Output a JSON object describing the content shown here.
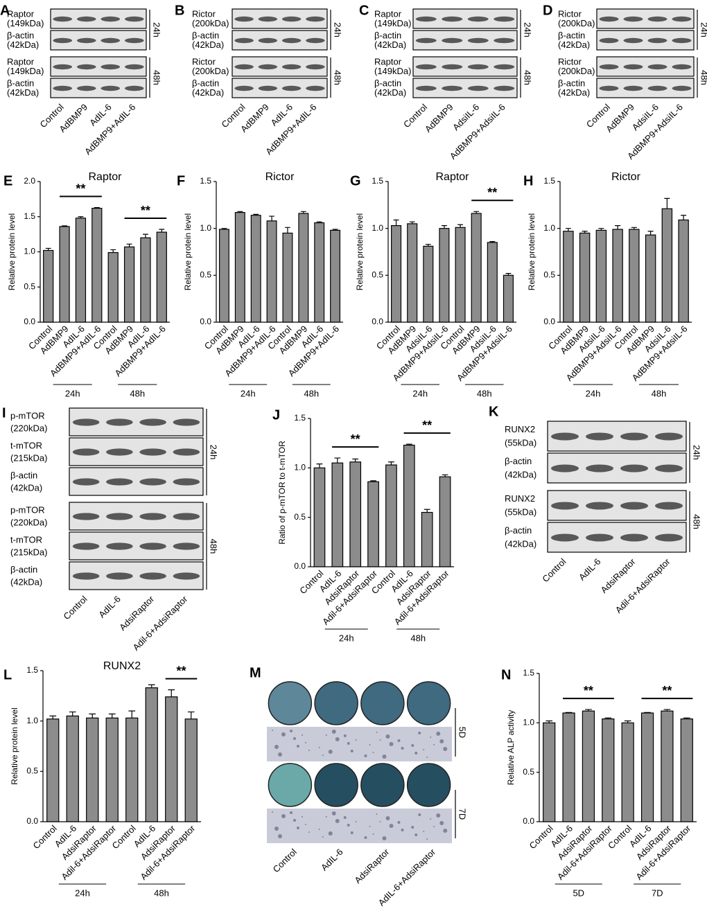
{
  "blots": [
    {
      "panel": "A",
      "groups": [
        {
          "time": "24h",
          "rows": [
            {
              "name": "Raptor",
              "size": "(149kDa)"
            },
            {
              "name": "β-actin",
              "size": "(42kDa)"
            }
          ]
        },
        {
          "time": "48h",
          "rows": [
            {
              "name": "Raptor",
              "size": "(149kDa)"
            },
            {
              "name": "β-actin",
              "size": "(42kDa)"
            }
          ]
        }
      ],
      "lanes": [
        "Control",
        "AdBMP9",
        "AdIL-6",
        "AdBMP9+AdIL-6"
      ]
    },
    {
      "panel": "B",
      "groups": [
        {
          "time": "24h",
          "rows": [
            {
              "name": "Rictor",
              "size": "(200kDa)"
            },
            {
              "name": "β-actin",
              "size": "(42kDa)"
            }
          ]
        },
        {
          "time": "48h",
          "rows": [
            {
              "name": "Rictor",
              "size": "(200kDa)"
            },
            {
              "name": "β-actin",
              "size": "(42kDa)"
            }
          ]
        }
      ],
      "lanes": [
        "Control",
        "AdBMP9",
        "AdIL-6",
        "AdBMP9+AdIL-6"
      ]
    },
    {
      "panel": "C",
      "groups": [
        {
          "time": "24h",
          "rows": [
            {
              "name": "Raptor",
              "size": "(149kDa)"
            },
            {
              "name": "β-actin",
              "size": "(42kDa)"
            }
          ]
        },
        {
          "time": "48h",
          "rows": [
            {
              "name": "Raptor",
              "size": "(149kDa)"
            },
            {
              "name": "β-actin",
              "size": "(42kDa)"
            }
          ]
        }
      ],
      "lanes": [
        "Control",
        "AdBMP9",
        "AdsiIL-6",
        "AdBMP9+AdsiIL-6"
      ]
    },
    {
      "panel": "D",
      "groups": [
        {
          "time": "24h",
          "rows": [
            {
              "name": "Rictor",
              "size": "(200kDa)"
            },
            {
              "name": "β-actin",
              "size": "(42kDa)"
            }
          ]
        },
        {
          "time": "48h",
          "rows": [
            {
              "name": "Rictor",
              "size": "(200kDa)"
            },
            {
              "name": "β-actin",
              "size": "(42kDa)"
            }
          ]
        }
      ],
      "lanes": [
        "Control",
        "AdBMP9",
        "AdsiIL-6",
        "AdBMP9+AdsiIL-6"
      ]
    },
    {
      "panel": "I",
      "groups": [
        {
          "time": "24h",
          "rows": [
            {
              "name": "p-mTOR",
              "size": "(220kDa)"
            },
            {
              "name": "t-mTOR",
              "size": "(215kDa)"
            },
            {
              "name": "β-actin",
              "size": "(42kDa)"
            }
          ]
        },
        {
          "time": "48h",
          "rows": [
            {
              "name": "p-mTOR",
              "size": "(220kDa)"
            },
            {
              "name": "t-mTOR",
              "size": "(215kDa)"
            },
            {
              "name": "β-actin",
              "size": "(42kDa)"
            }
          ]
        }
      ],
      "lanes": [
        "Control",
        "AdIL-6",
        "AdsiRaptor",
        "Adil-6+AdsiRaptor"
      ]
    },
    {
      "panel": "K",
      "groups": [
        {
          "time": "24h",
          "rows": [
            {
              "name": "RUNX2",
              "size": "(55kDa)"
            },
            {
              "name": "β-actin",
              "size": "(42kDa)"
            }
          ]
        },
        {
          "time": "48h",
          "rows": [
            {
              "name": "RUNX2",
              "size": "(55kDa)"
            },
            {
              "name": "β-actin",
              "size": "(42kDa)"
            }
          ]
        }
      ],
      "lanes": [
        "Control",
        "AdIL-6",
        "AdsiRaptor",
        "Adil-6+AdsiRaptor"
      ]
    }
  ],
  "plates": {
    "panel": "M",
    "rows": [
      {
        "time": "5D"
      },
      {
        "time": "7D"
      }
    ],
    "lanes": [
      "Control",
      "AdIL-6",
      "AdsiRaptor",
      "AdIL-6+AdsiRaptor"
    ]
  },
  "chart_data": [
    {
      "type": "bar",
      "panel": "E",
      "title": "Raptor",
      "ylabel": "Relative protein level",
      "color": "#8c8c8c",
      "categories": [
        "Control",
        "AdBMP9",
        "AdIL-6",
        "AdBMP9+AdIL-6",
        "Control",
        "AdBMP9",
        "AdIL-6",
        "AdBMP9+AdIL-6"
      ],
      "values": [
        1.02,
        1.36,
        1.48,
        1.62,
        0.99,
        1.07,
        1.2,
        1.28
      ],
      "errors": [
        0.03,
        0.01,
        0.02,
        0.01,
        0.04,
        0.04,
        0.05,
        0.04
      ],
      "groups": [
        {
          "label": "24h"
        },
        {
          "label": "48h"
        }
      ],
      "ylim": [
        0,
        2
      ],
      "yticks": [
        {
          "value": 0,
          "label": "0.0"
        },
        0.5,
        {
          "value": 1,
          "label": "1.0"
        },
        1.5,
        {
          "value": 2,
          "label": "2.0"
        }
      ],
      "significance": [
        {
          "label": "**",
          "from": 1,
          "to": 3
        },
        {
          "label": "**",
          "from": 5,
          "to": 7
        }
      ]
    },
    {
      "type": "bar",
      "panel": "F",
      "title": "Rictor",
      "ylabel": "Relative protein level",
      "color": "#8c8c8c",
      "categories": [
        "Control",
        "AdBMP9",
        "AdIL-6",
        "AdBMP9+AdIL-6",
        "Control",
        "AdBMP9",
        "AdIL-6",
        "AdBMP9+AdIL-6"
      ],
      "values": [
        0.99,
        1.17,
        1.14,
        1.08,
        0.95,
        1.16,
        1.06,
        0.98
      ],
      "errors": [
        0.01,
        0.01,
        0.01,
        0.05,
        0.06,
        0.02,
        0.01,
        0.01
      ],
      "groups": [
        {
          "label": "24h"
        },
        {
          "label": "48h"
        }
      ],
      "ylim": [
        0,
        1.5
      ],
      "yticks": [
        {
          "value": 0,
          "label": "0.0"
        },
        0.5,
        {
          "value": 1,
          "label": "1.0"
        },
        1.5
      ],
      "significance": []
    },
    {
      "type": "bar",
      "panel": "G",
      "title": "Raptor",
      "ylabel": "Relative protein level",
      "color": "#8c8c8c",
      "categories": [
        "Control",
        "AdBMP9",
        "AdsiIL-6",
        "AdBMP9+AdsiIL-6",
        "Control",
        "AdBMP9",
        "AdsiIL-6",
        "AdBMP9+AdsiIL-6"
      ],
      "values": [
        1.03,
        1.05,
        0.81,
        1.0,
        1.01,
        1.16,
        0.85,
        0.5
      ],
      "errors": [
        0.06,
        0.02,
        0.02,
        0.03,
        0.03,
        0.02,
        0.01,
        0.02
      ],
      "groups": [
        {
          "label": "24h"
        },
        {
          "label": "48h"
        }
      ],
      "ylim": [
        0,
        1.5
      ],
      "yticks": [
        {
          "value": 0,
          "label": "0.0"
        },
        0.5,
        {
          "value": 1,
          "label": "1.0"
        },
        1.5
      ],
      "significance": [
        {
          "label": "**",
          "from": 5,
          "to": 7
        }
      ]
    },
    {
      "type": "bar",
      "panel": "H",
      "title": "Rictor",
      "ylabel": "Relative protein level",
      "color": "#8c8c8c",
      "categories": [
        "Control",
        "AdBMP9",
        "AdsiIL-6",
        "AdBMP9+AdsiIL-6",
        "Control",
        "AdBMP9",
        "AdsiIL-6",
        "AdBMP9+AdsiIL-6"
      ],
      "values": [
        0.97,
        0.95,
        0.98,
        0.99,
        0.99,
        0.93,
        1.21,
        1.09
      ],
      "errors": [
        0.03,
        0.02,
        0.02,
        0.04,
        0.02,
        0.04,
        0.11,
        0.05
      ],
      "groups": [
        {
          "label": "24h"
        },
        {
          "label": "48h"
        }
      ],
      "ylim": [
        0,
        1.5
      ],
      "yticks": [
        {
          "value": 0,
          "label": "0.0"
        },
        0.5,
        {
          "value": 1,
          "label": "1.0"
        },
        1.5
      ],
      "significance": []
    },
    {
      "type": "bar",
      "panel": "J",
      "ylabel": "Ratio of p-mTOR to t-mTOR",
      "color": "#8c8c8c",
      "categories": [
        "Control",
        "AdIL-6",
        "AdsiRaptor",
        "Adil-6+AdsiRaptor",
        "Control",
        "AdIL-6",
        "AdsiRaptor",
        "Adil-6+AdsiRaptor"
      ],
      "values": [
        1.0,
        1.05,
        1.06,
        0.86,
        1.03,
        1.23,
        0.55,
        0.91
      ],
      "errors": [
        0.04,
        0.05,
        0.03,
        0.01,
        0.03,
        0.01,
        0.03,
        0.02
      ],
      "groups": [
        {
          "label": "24h"
        },
        {
          "label": "48h"
        }
      ],
      "ylim": [
        0,
        1.5
      ],
      "yticks": [
        {
          "value": 0,
          "label": "0.0"
        },
        0.5,
        {
          "value": 1,
          "label": "1.0"
        },
        1.5
      ],
      "significance": [
        {
          "label": "**",
          "from": 1,
          "to": 3
        },
        {
          "label": "**",
          "from": 5,
          "to": 7
        }
      ]
    },
    {
      "type": "bar",
      "panel": "L",
      "title": "RUNX2",
      "ylabel": "Relative protein level",
      "color": "#8c8c8c",
      "categories": [
        "Control",
        "AdIL-6",
        "AdsiRaptor",
        "Adil-6+AdsiRaptor",
        "Control",
        "AdIL-6",
        "AdsiRaptor",
        "Adil-6+AdsiRaptor"
      ],
      "values": [
        1.02,
        1.05,
        1.03,
        1.03,
        1.03,
        1.33,
        1.24,
        1.02
      ],
      "errors": [
        0.03,
        0.04,
        0.04,
        0.04,
        0.07,
        0.03,
        0.07,
        0.07
      ],
      "groups": [
        {
          "label": "24h"
        },
        {
          "label": "48h"
        }
      ],
      "ylim": [
        0,
        1.5
      ],
      "yticks": [
        {
          "value": 0,
          "label": "0.0"
        },
        0.5,
        {
          "value": 1,
          "label": "1.0"
        },
        1.5
      ],
      "significance": [
        {
          "label": "**",
          "from": 6,
          "to": 7
        }
      ]
    },
    {
      "type": "bar",
      "panel": "N",
      "ylabel": "Relative ALP activity",
      "color": "#8c8c8c",
      "categories": [
        "Control",
        "AdIL-6",
        "AdsiRaptor",
        "Adil-6+AdsiRaptor",
        "Control",
        "AdIL-6",
        "AdsiRaptor",
        "Adil-6+AdsiRaptor"
      ],
      "values": [
        1.0,
        1.1,
        1.12,
        1.04,
        1.0,
        1.1,
        1.12,
        1.04
      ],
      "errors": [
        0.02,
        0.005,
        0.015,
        0.01,
        0.02,
        0.005,
        0.015,
        0.01
      ],
      "groups": [
        {
          "label": "5D"
        },
        {
          "label": "7D"
        }
      ],
      "ylim": [
        0,
        1.5
      ],
      "yticks": [
        {
          "value": 0,
          "label": "0.0"
        },
        0.5,
        {
          "value": 1,
          "label": "1.0"
        },
        1.5
      ],
      "significance": [
        {
          "label": "**",
          "from": 1,
          "to": 3
        },
        {
          "label": "**",
          "from": 5,
          "to": 7
        }
      ]
    }
  ]
}
